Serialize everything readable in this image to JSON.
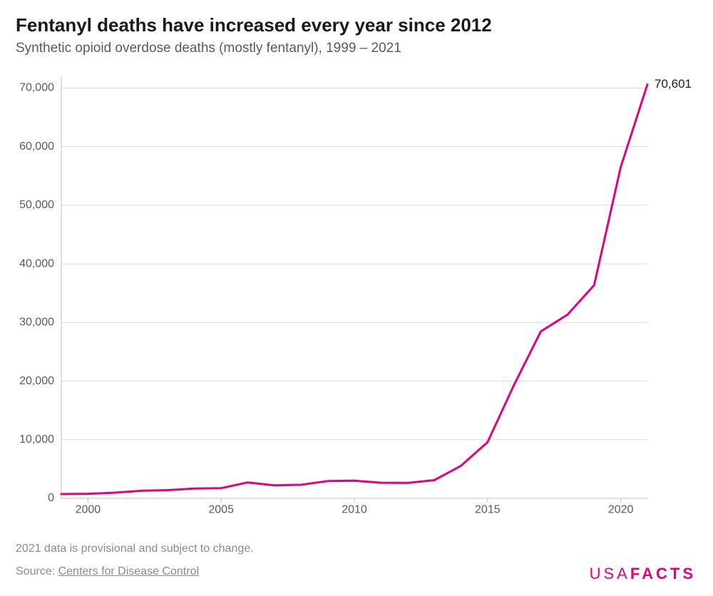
{
  "title": "Fentanyl deaths have increased every year since 2012",
  "subtitle": "Synthetic opioid overdose deaths (mostly fentanyl), 1999 – 2021",
  "chart": {
    "type": "line",
    "background_color": "#ffffff",
    "grid_color": "#dcdcdc",
    "baseline_color": "#bfbfbf",
    "line_color": "#e6007d",
    "line_width": 3,
    "label_fontsize": 16,
    "title_fontsize": 26,
    "subtitle_fontsize": 19,
    "x": {
      "min": 1999,
      "max": 2021,
      "ticks": [
        2000,
        2005,
        2010,
        2015,
        2020
      ]
    },
    "y": {
      "min": 0,
      "max": 72000,
      "ticks": [
        0,
        10000,
        20000,
        30000,
        40000,
        50000,
        60000,
        70000
      ],
      "tick_labels": [
        "0",
        "10,000",
        "20,000",
        "30,000",
        "40,000",
        "50,000",
        "60,000",
        "70,000"
      ]
    },
    "series": {
      "years": [
        1999,
        2000,
        2001,
        2002,
        2003,
        2004,
        2005,
        2006,
        2007,
        2008,
        2009,
        2010,
        2011,
        2012,
        2013,
        2014,
        2015,
        2016,
        2017,
        2018,
        2019,
        2020,
        2021
      ],
      "values": [
        730,
        782,
        957,
        1295,
        1400,
        1664,
        1742,
        2707,
        2213,
        2306,
        2946,
        3007,
        2666,
        2628,
        3105,
        5544,
        9580,
        19413,
        28466,
        31335,
        36359,
        56516,
        70601
      ]
    },
    "end_label": "70,601"
  },
  "footer": {
    "note": "2021 data is provisional and subject to change.",
    "source_prefix": "Source: ",
    "source_text": "Centers for Disease Control"
  },
  "brand": {
    "part1": "USA",
    "part2": "FACTS",
    "color": "#e6007d"
  }
}
